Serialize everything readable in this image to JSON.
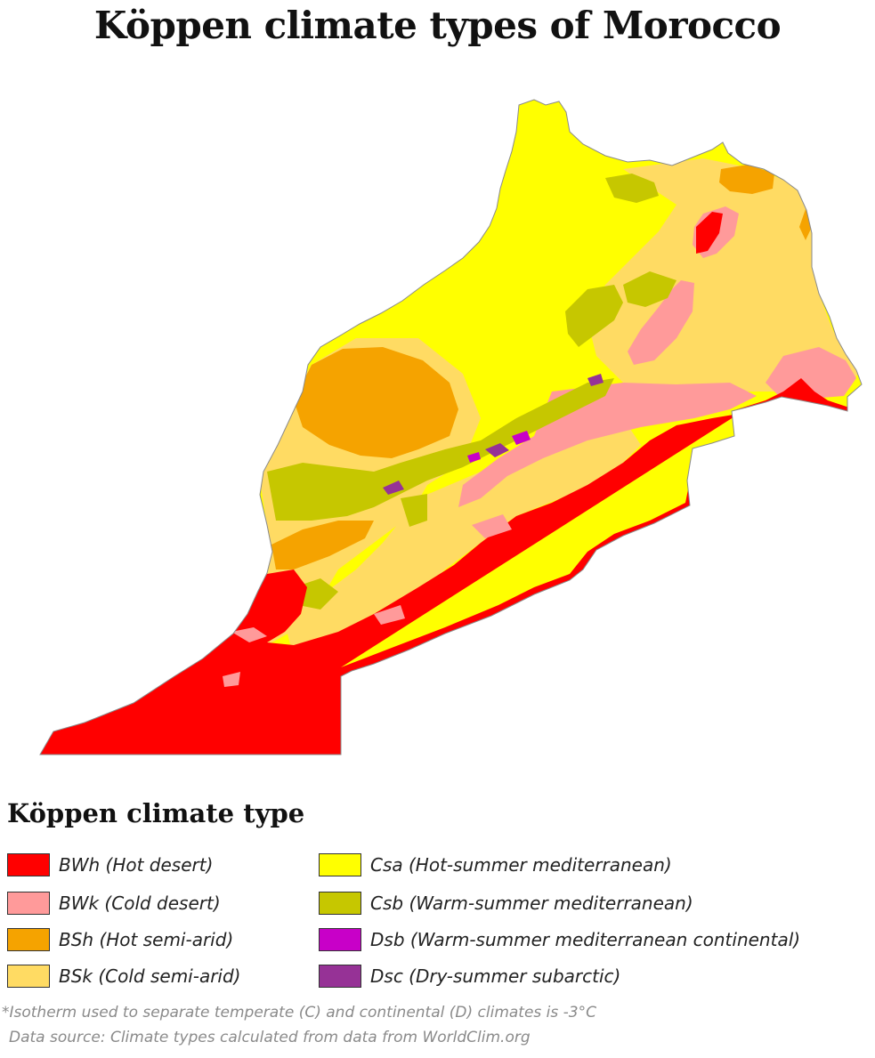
{
  "title": "Köppen climate types of Morocco",
  "legend": {
    "heading": "Köppen climate type",
    "items": [
      {
        "code": "BWh",
        "label": "BWh (Hot desert)",
        "color": "#ff0000"
      },
      {
        "code": "BWk",
        "label": "BWk (Cold desert)",
        "color": "#ff9a9a"
      },
      {
        "code": "BSh",
        "label": "BSh (Hot semi-arid)",
        "color": "#f5a300"
      },
      {
        "code": "BSk",
        "label": "BSk (Cold semi-arid)",
        "color": "#ffdb63"
      },
      {
        "code": "Csa",
        "label": "Csa (Hot-summer mediterranean)",
        "color": "#ffff00"
      },
      {
        "code": "Csb",
        "label": "Csb (Warm-summer mediterranean)",
        "color": "#c6c700"
      },
      {
        "code": "Dsb",
        "label": "Dsb (Warm-summer mediterranean continental)",
        "color": "#c800c8"
      },
      {
        "code": "Dsc",
        "label": "Dsc (Dry-summer subarctic)",
        "color": "#963296"
      }
    ]
  },
  "footnotes": {
    "isotherm": "*Isotherm used to separate temperate (C) and continental (D) climates is -3°C",
    "source": "Data source: Climate types calculated from data from WorldClim.org"
  }
}
